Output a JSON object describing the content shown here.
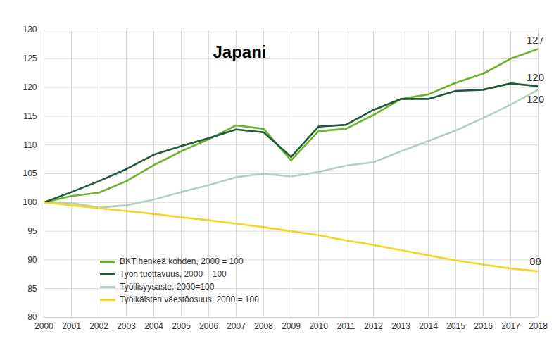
{
  "chart_data": {
    "type": "line",
    "title": "Japani",
    "x": [
      2000,
      2001,
      2002,
      2003,
      2004,
      2005,
      2006,
      2007,
      2008,
      2009,
      2010,
      2011,
      2012,
      2013,
      2014,
      2015,
      2016,
      2017,
      2018
    ],
    "series": [
      {
        "name": "BKT henkeä kohden, 2000 = 100",
        "color": "#6ab42d",
        "values": [
          100,
          101.1,
          101.7,
          103.7,
          106.5,
          108.9,
          111.0,
          113.4,
          112.8,
          107.3,
          112.4,
          112.8,
          115.2,
          118.0,
          118.8,
          120.8,
          122.4,
          125.0,
          126.7
        ],
        "value_labels": [
          null,
          null,
          null,
          null,
          null,
          null,
          null,
          null,
          null,
          null,
          null,
          null,
          null,
          null,
          null,
          null,
          null,
          null,
          "127"
        ]
      },
      {
        "name": "Työn tuottavuus, 2000 = 100",
        "color": "#1f5a3a",
        "values": [
          100,
          101.8,
          103.7,
          105.8,
          108.3,
          109.8,
          111.2,
          112.7,
          112.2,
          107.9,
          113.2,
          113.5,
          116.1,
          118.0,
          118.0,
          119.4,
          119.6,
          120.7,
          120.2
        ],
        "value_labels": [
          null,
          null,
          null,
          null,
          null,
          null,
          null,
          null,
          null,
          null,
          null,
          null,
          null,
          null,
          null,
          null,
          null,
          null,
          "120"
        ]
      },
      {
        "name": "Työllisyysaste, 2000=100",
        "color": "#b5cfbd",
        "values": [
          100,
          99.9,
          99.1,
          99.5,
          100.5,
          101.8,
          103.0,
          104.4,
          105.0,
          104.5,
          105.3,
          106.4,
          107.0,
          108.9,
          110.7,
          112.5,
          114.7,
          117.0,
          119.6
        ],
        "value_labels": [
          null,
          null,
          null,
          null,
          null,
          null,
          null,
          null,
          null,
          null,
          null,
          null,
          null,
          null,
          null,
          null,
          null,
          null,
          "120"
        ]
      },
      {
        "name": "Työikäisten väestöosuus, 2000 = 100",
        "color": "#f5d327",
        "values": [
          100,
          99.5,
          99.0,
          98.5,
          98.0,
          97.4,
          96.9,
          96.3,
          95.7,
          95.0,
          94.3,
          93.4,
          92.6,
          91.7,
          90.8,
          89.9,
          89.2,
          88.5,
          88.0
        ],
        "value_labels": [
          null,
          null,
          null,
          null,
          null,
          null,
          null,
          null,
          null,
          null,
          null,
          null,
          null,
          null,
          null,
          null,
          null,
          null,
          "88"
        ]
      }
    ],
    "xlim": [
      2000,
      2018
    ],
    "xticks": [
      2000,
      2001,
      2002,
      2003,
      2004,
      2005,
      2006,
      2007,
      2008,
      2009,
      2010,
      2011,
      2012,
      2013,
      2014,
      2015,
      2016,
      2017,
      2018
    ],
    "ylim": [
      80,
      130
    ],
    "yticks": [
      80,
      85,
      90,
      95,
      100,
      105,
      110,
      115,
      120,
      125,
      130
    ],
    "grid": true,
    "legend": "bottom-left",
    "data_labels": true
  }
}
